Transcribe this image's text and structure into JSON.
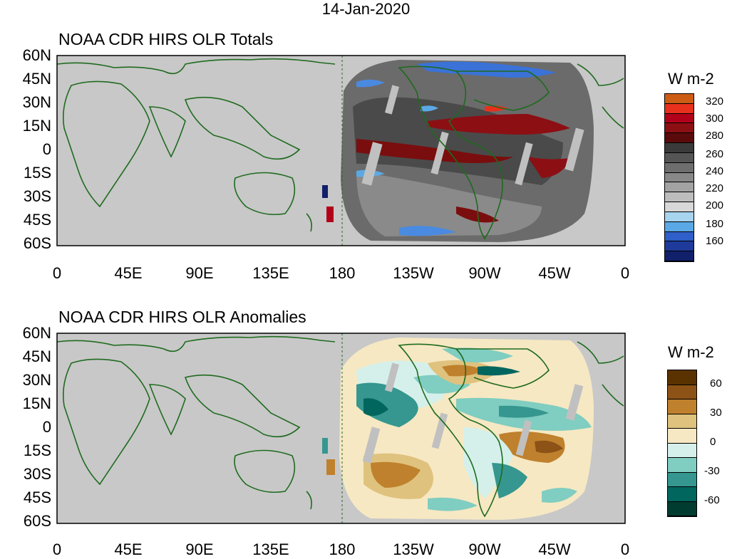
{
  "date_title": "14-Jan-2020",
  "panels": [
    {
      "title": "NOAA CDR HIRS OLR Totals",
      "lat_labels": [
        "60N",
        "45N",
        "30N",
        "15N",
        "0",
        "15S",
        "30S",
        "45S",
        "60S"
      ],
      "lon_labels": [
        "0",
        "45E",
        "90E",
        "135E",
        "180",
        "135W",
        "90W",
        "45W",
        "0"
      ],
      "colorbar": {
        "unit": "W m-2",
        "colors_top_to_bottom": [
          "#cd5c14",
          "#e8301c",
          "#b2001a",
          "#8c0f14",
          "#5a0a0a",
          "#3a3a3a",
          "#555555",
          "#6e6e6e",
          "#888888",
          "#a3a3a3",
          "#bdbdbd",
          "#d8d8d8",
          "#a7d4ee",
          "#5aa9e6",
          "#2f5fc8",
          "#1e3a9a",
          "#11206a"
        ],
        "labels": [
          "320",
          "300",
          "280",
          "260",
          "240",
          "220",
          "200",
          "180",
          "160"
        ]
      }
    },
    {
      "title": "NOAA CDR HIRS OLR Anomalies",
      "lat_labels": [
        "60N",
        "45N",
        "30N",
        "15N",
        "0",
        "15S",
        "30S",
        "45S",
        "60S"
      ],
      "lon_labels": [
        "0",
        "45E",
        "90E",
        "135E",
        "180",
        "135W",
        "90W",
        "45W",
        "0"
      ],
      "colorbar": {
        "unit": "W m-2",
        "colors_top_to_bottom": [
          "#5a3200",
          "#8c5216",
          "#bf812d",
          "#dfc27d",
          "#f6e8c3",
          "#d5f0ea",
          "#80cdc1",
          "#35978f",
          "#01665e",
          "#003c30"
        ],
        "labels": [
          "60",
          "30",
          "0",
          "-30",
          "-60"
        ]
      }
    }
  ],
  "colors": {
    "coastline": "#1f6b1f",
    "no_data_gray": "#c8c8c8"
  }
}
